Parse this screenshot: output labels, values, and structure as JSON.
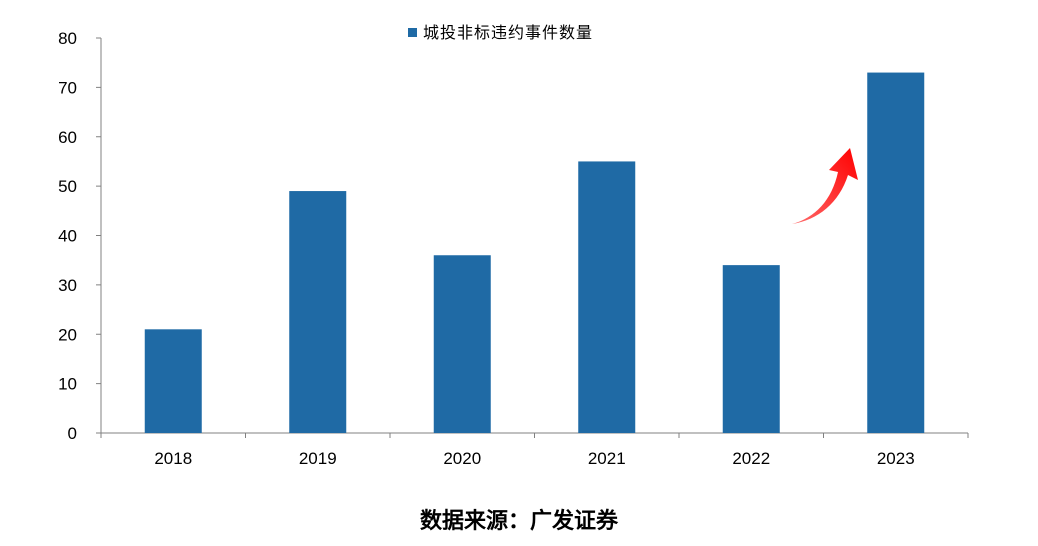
{
  "chart_data": {
    "type": "bar",
    "categories": [
      "2018",
      "2019",
      "2020",
      "2021",
      "2022",
      "2023"
    ],
    "series": [
      {
        "name": "城投非标违约事件数量",
        "values": [
          21,
          49,
          36,
          55,
          34,
          73
        ]
      }
    ],
    "ylim": [
      0,
      80
    ],
    "yticks": [
      0,
      10,
      20,
      30,
      40,
      50,
      60,
      70,
      80
    ],
    "legend_position": "top-center",
    "grid": false,
    "annotation": "red upward arrow pointing to 2023 bar",
    "colors": {
      "bar": "#1f6aa5",
      "arrow": "#ff0000"
    }
  },
  "source_note": "数据来源：广发证券"
}
